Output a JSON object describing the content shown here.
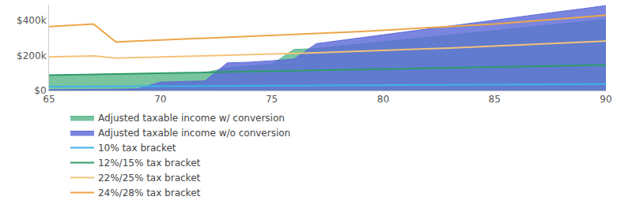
{
  "chart_data": {
    "type": "area",
    "x": [
      65,
      66,
      67,
      68,
      69,
      70,
      71,
      72,
      73,
      74,
      75,
      76,
      77,
      78,
      79,
      80,
      81,
      82,
      83,
      84,
      85,
      86,
      87,
      88,
      89,
      90
    ],
    "series": [
      {
        "name": "Adjusted taxable income w/ conversion",
        "type": "area",
        "color": "#5cb88a",
        "values": [
          88000,
          90000,
          92000,
          94000,
          96000,
          98000,
          100000,
          102000,
          130000,
          140000,
          150000,
          235000,
          240000,
          253000,
          266000,
          279000,
          292000,
          304000,
          317000,
          330000,
          342000,
          355000,
          368000,
          380000,
          393000,
          405000
        ]
      },
      {
        "name": "Adjusted taxable income w/o conversion",
        "type": "area",
        "color": "#5b6ad8",
        "values": [
          5000,
          5000,
          6000,
          8000,
          10000,
          48000,
          52000,
          55000,
          158000,
          162000,
          170000,
          180000,
          268000,
          285000,
          302000,
          319000,
          336000,
          353000,
          370000,
          387000,
          404000,
          420000,
          436000,
          452000,
          468000,
          485000
        ]
      },
      {
        "name": "10% tax bracket",
        "type": "line",
        "color": "#3db3ea",
        "values": [
          22000,
          22600,
          23200,
          23800,
          24400,
          25000,
          25600,
          26200,
          26800,
          27400,
          28000,
          28600,
          29200,
          29800,
          30400,
          31000,
          31600,
          32200,
          32800,
          33400,
          34000,
          34600,
          35200,
          35800,
          36400,
          37000
        ]
      },
      {
        "name": "12%/15% tax bracket",
        "type": "line",
        "color": "#2e9c68",
        "values": [
          88000,
          90000,
          92000,
          94000,
          96500,
          99000,
          101500,
          104000,
          106000,
          108500,
          111000,
          113000,
          115500,
          118000,
          120500,
          123000,
          125500,
          128000,
          130000,
          132500,
          135000,
          137500,
          140000,
          142000,
          144000,
          146000
        ]
      },
      {
        "name": "22%/25% tax bracket",
        "type": "line",
        "color": "#f2c27a",
        "values": [
          192000,
          195000,
          198000,
          185000,
          188000,
          191000,
          194000,
          197000,
          200000,
          204000,
          208000,
          212000,
          216000,
          220000,
          224000,
          228000,
          233000,
          238000,
          243000,
          248000,
          254000,
          260000,
          266000,
          272000,
          278000,
          283000
        ]
      },
      {
        "name": "24%/28% tax bracket",
        "type": "line",
        "color": "#eda64a",
        "values": [
          365000,
          372000,
          380000,
          278000,
          283000,
          288000,
          293000,
          298000,
          303000,
          308000,
          313000,
          319000,
          325000,
          331000,
          337000,
          344000,
          351000,
          358000,
          365000,
          372000,
          380000,
          390000,
          400000,
          410000,
          420000,
          430000
        ]
      }
    ],
    "xlim": [
      65,
      90
    ],
    "xticks": [
      65,
      70,
      75,
      80,
      85,
      90
    ],
    "ylim": [
      0,
      490000
    ],
    "yticks": [
      {
        "value": 0,
        "label": "$0"
      },
      {
        "value": 200000,
        "label": "$200k"
      },
      {
        "value": 400000,
        "label": "$400k"
      }
    ],
    "grid": false,
    "legend": "bottom"
  }
}
